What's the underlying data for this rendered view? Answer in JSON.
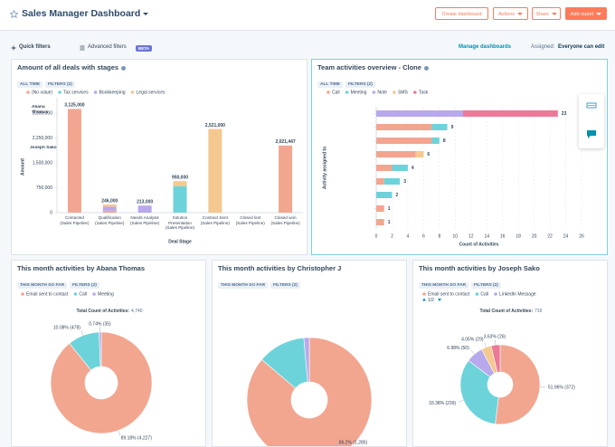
{
  "header": {
    "title": "Sales Manager Dashboard",
    "buttons": [
      "Create dashboard",
      "Actions",
      "Share",
      "Add report"
    ]
  },
  "toolbar": {
    "quick_filters": "Quick filters",
    "advanced_filters": "Advanced filters",
    "beta": "BETA",
    "manage": "Manage dashboards",
    "assigned_label": "Assigned:",
    "assigned_value": "Everyone can edit"
  },
  "chart_data": [
    {
      "type": "bar",
      "stacked": true,
      "title": "Amount of all deals with stages",
      "tags": [
        "ALL TIME",
        "FILTERS (2)"
      ],
      "categories": [
        "Contacted (Sales Pipeline)",
        "Qualification (Sales Pipeline)",
        "Needs Analysis (Sales Pipeline)",
        "Solution Presentation (Sales Pipeline)",
        "Contract Sent (Sales Pipeline)",
        "Closed lost (Sales Pipeline)",
        "Closed won (Sales Pipeline)"
      ],
      "series": [
        {
          "name": "(No value)",
          "color": "#f2a68f",
          "values": [
            3125000,
            60000,
            0,
            0,
            0,
            0,
            2021447
          ]
        },
        {
          "name": "Tax services",
          "color": "#6dd3da",
          "values": [
            0,
            0,
            0,
            800000,
            0,
            0,
            0
          ]
        },
        {
          "name": "Bookkeeping",
          "color": "#b8a8ec",
          "values": [
            0,
            120000,
            213000,
            0,
            0,
            0,
            0
          ]
        },
        {
          "name": "Legal services",
          "color": "#f5c88f",
          "values": [
            0,
            66000,
            0,
            150000,
            2521000,
            0,
            0
          ]
        }
      ],
      "totals": [
        3125000,
        246000,
        213000,
        950000,
        2521000,
        null,
        2021447
      ],
      "total_labels": [
        "3,125,000",
        "246,000",
        "213,000",
        "950,000",
        "2,521,000",
        null,
        "2,021,447"
      ],
      "ylim": [
        0,
        3300000
      ],
      "yticks": [
        0,
        {
          "value": 750000,
          "label": "750,000"
        },
        {
          "value": 1500000,
          "label": "1,500,000"
        },
        {
          "value": 2250000,
          "label": "2,250,000"
        },
        {
          "value": 3000000,
          "label": "3,000,000"
        }
      ],
      "grid": false,
      "xlabel": "Deal Stage",
      "ylabel": "Amount",
      "annotations": [
        "Abana Thomas",
        "Joseph Sako"
      ]
    },
    {
      "type": "bar",
      "orientation": "horizontal",
      "stacked": true,
      "title": "Team activities overview - Clone",
      "tags": [
        "ALL TIME",
        "FILTERS (2)"
      ],
      "categories": [
        null,
        null,
        null,
        null,
        null,
        null,
        null,
        null,
        null
      ],
      "series": [
        {
          "name": "Call",
          "color": "#f2a68f",
          "values": [
            0,
            7,
            7,
            5,
            2,
            1,
            0,
            1,
            1
          ]
        },
        {
          "name": "Meeting",
          "color": "#6dd3da",
          "values": [
            0,
            2,
            1,
            0,
            2,
            2,
            2,
            0,
            0
          ]
        },
        {
          "name": "Note",
          "color": "#b8a8ec",
          "values": [
            11,
            0,
            0,
            0,
            0,
            0,
            0,
            0,
            0
          ]
        },
        {
          "name": "SMS",
          "color": "#f5c88f",
          "values": [
            0,
            0,
            0,
            1,
            0,
            0,
            0,
            0,
            0
          ]
        },
        {
          "name": "Task",
          "color": "#ea7a98",
          "values": [
            12,
            0,
            0,
            0,
            0,
            0,
            0,
            0,
            0
          ]
        }
      ],
      "totals": [
        23,
        9,
        8,
        6,
        4,
        3,
        2,
        1,
        1
      ],
      "xlim": [
        0,
        26
      ],
      "xticks": [
        0,
        2,
        4,
        6,
        8,
        10,
        12,
        14,
        16,
        18,
        20,
        22,
        24,
        26
      ],
      "grid": true,
      "xlabel": "Count of Activities",
      "ylabel": "Activity assigned to"
    },
    {
      "type": "pie",
      "donut": true,
      "title": "This month activities by Abana Thomas",
      "tags": [
        "THIS MONTH SO FAR",
        "FILTERS (2)"
      ],
      "categories": [
        "Email sent to contact",
        "Call",
        "Meeting"
      ],
      "colors": [
        "#f2a68f",
        "#6dd3da",
        "#b8a8ec"
      ],
      "values": [
        4227,
        478,
        35
      ],
      "value_labels": [
        "89.18% (4,227)",
        "10.08% (478)",
        "0.74% (35)"
      ],
      "total_label": "Total Count of Activities:",
      "total": {
        "value": 4740,
        "label": "4,740"
      }
    },
    {
      "type": "pie",
      "donut": true,
      "title": "This month activities by Christopher J",
      "tags": [
        "THIS MONTH SO FAR",
        "FILTERS (2)"
      ],
      "categories": [
        null,
        null,
        null
      ],
      "colors": [
        "#f2a68f",
        "#6dd3da",
        "#b8a8ec"
      ],
      "values": [
        1285,
        185,
        21
      ],
      "value_labels": [
        "86.2% (1,285)",
        null,
        null
      ]
    },
    {
      "type": "pie",
      "donut": true,
      "title": "This month activities by Joseph Sako",
      "tags": [
        "THIS MONTH SO FAR",
        "FILTERS (2)"
      ],
      "categories": [
        "Email sent to contact",
        "Call",
        "LinkedIn Message",
        null,
        null
      ],
      "colors": [
        "#f2a68f",
        "#6dd3da",
        "#b8a8ec",
        "#f5c88f",
        "#ea7a98"
      ],
      "values": [
        372,
        239,
        50,
        29,
        26
      ],
      "value_labels": [
        "51.96% (372)",
        "33.38% (239)",
        "6.98% (50)",
        "4.05% (29)",
        "3.63% (26)"
      ],
      "legend_page": "1/2",
      "total_label": "Total Count of Activities:",
      "total": {
        "value": 716,
        "label": "716"
      }
    }
  ]
}
